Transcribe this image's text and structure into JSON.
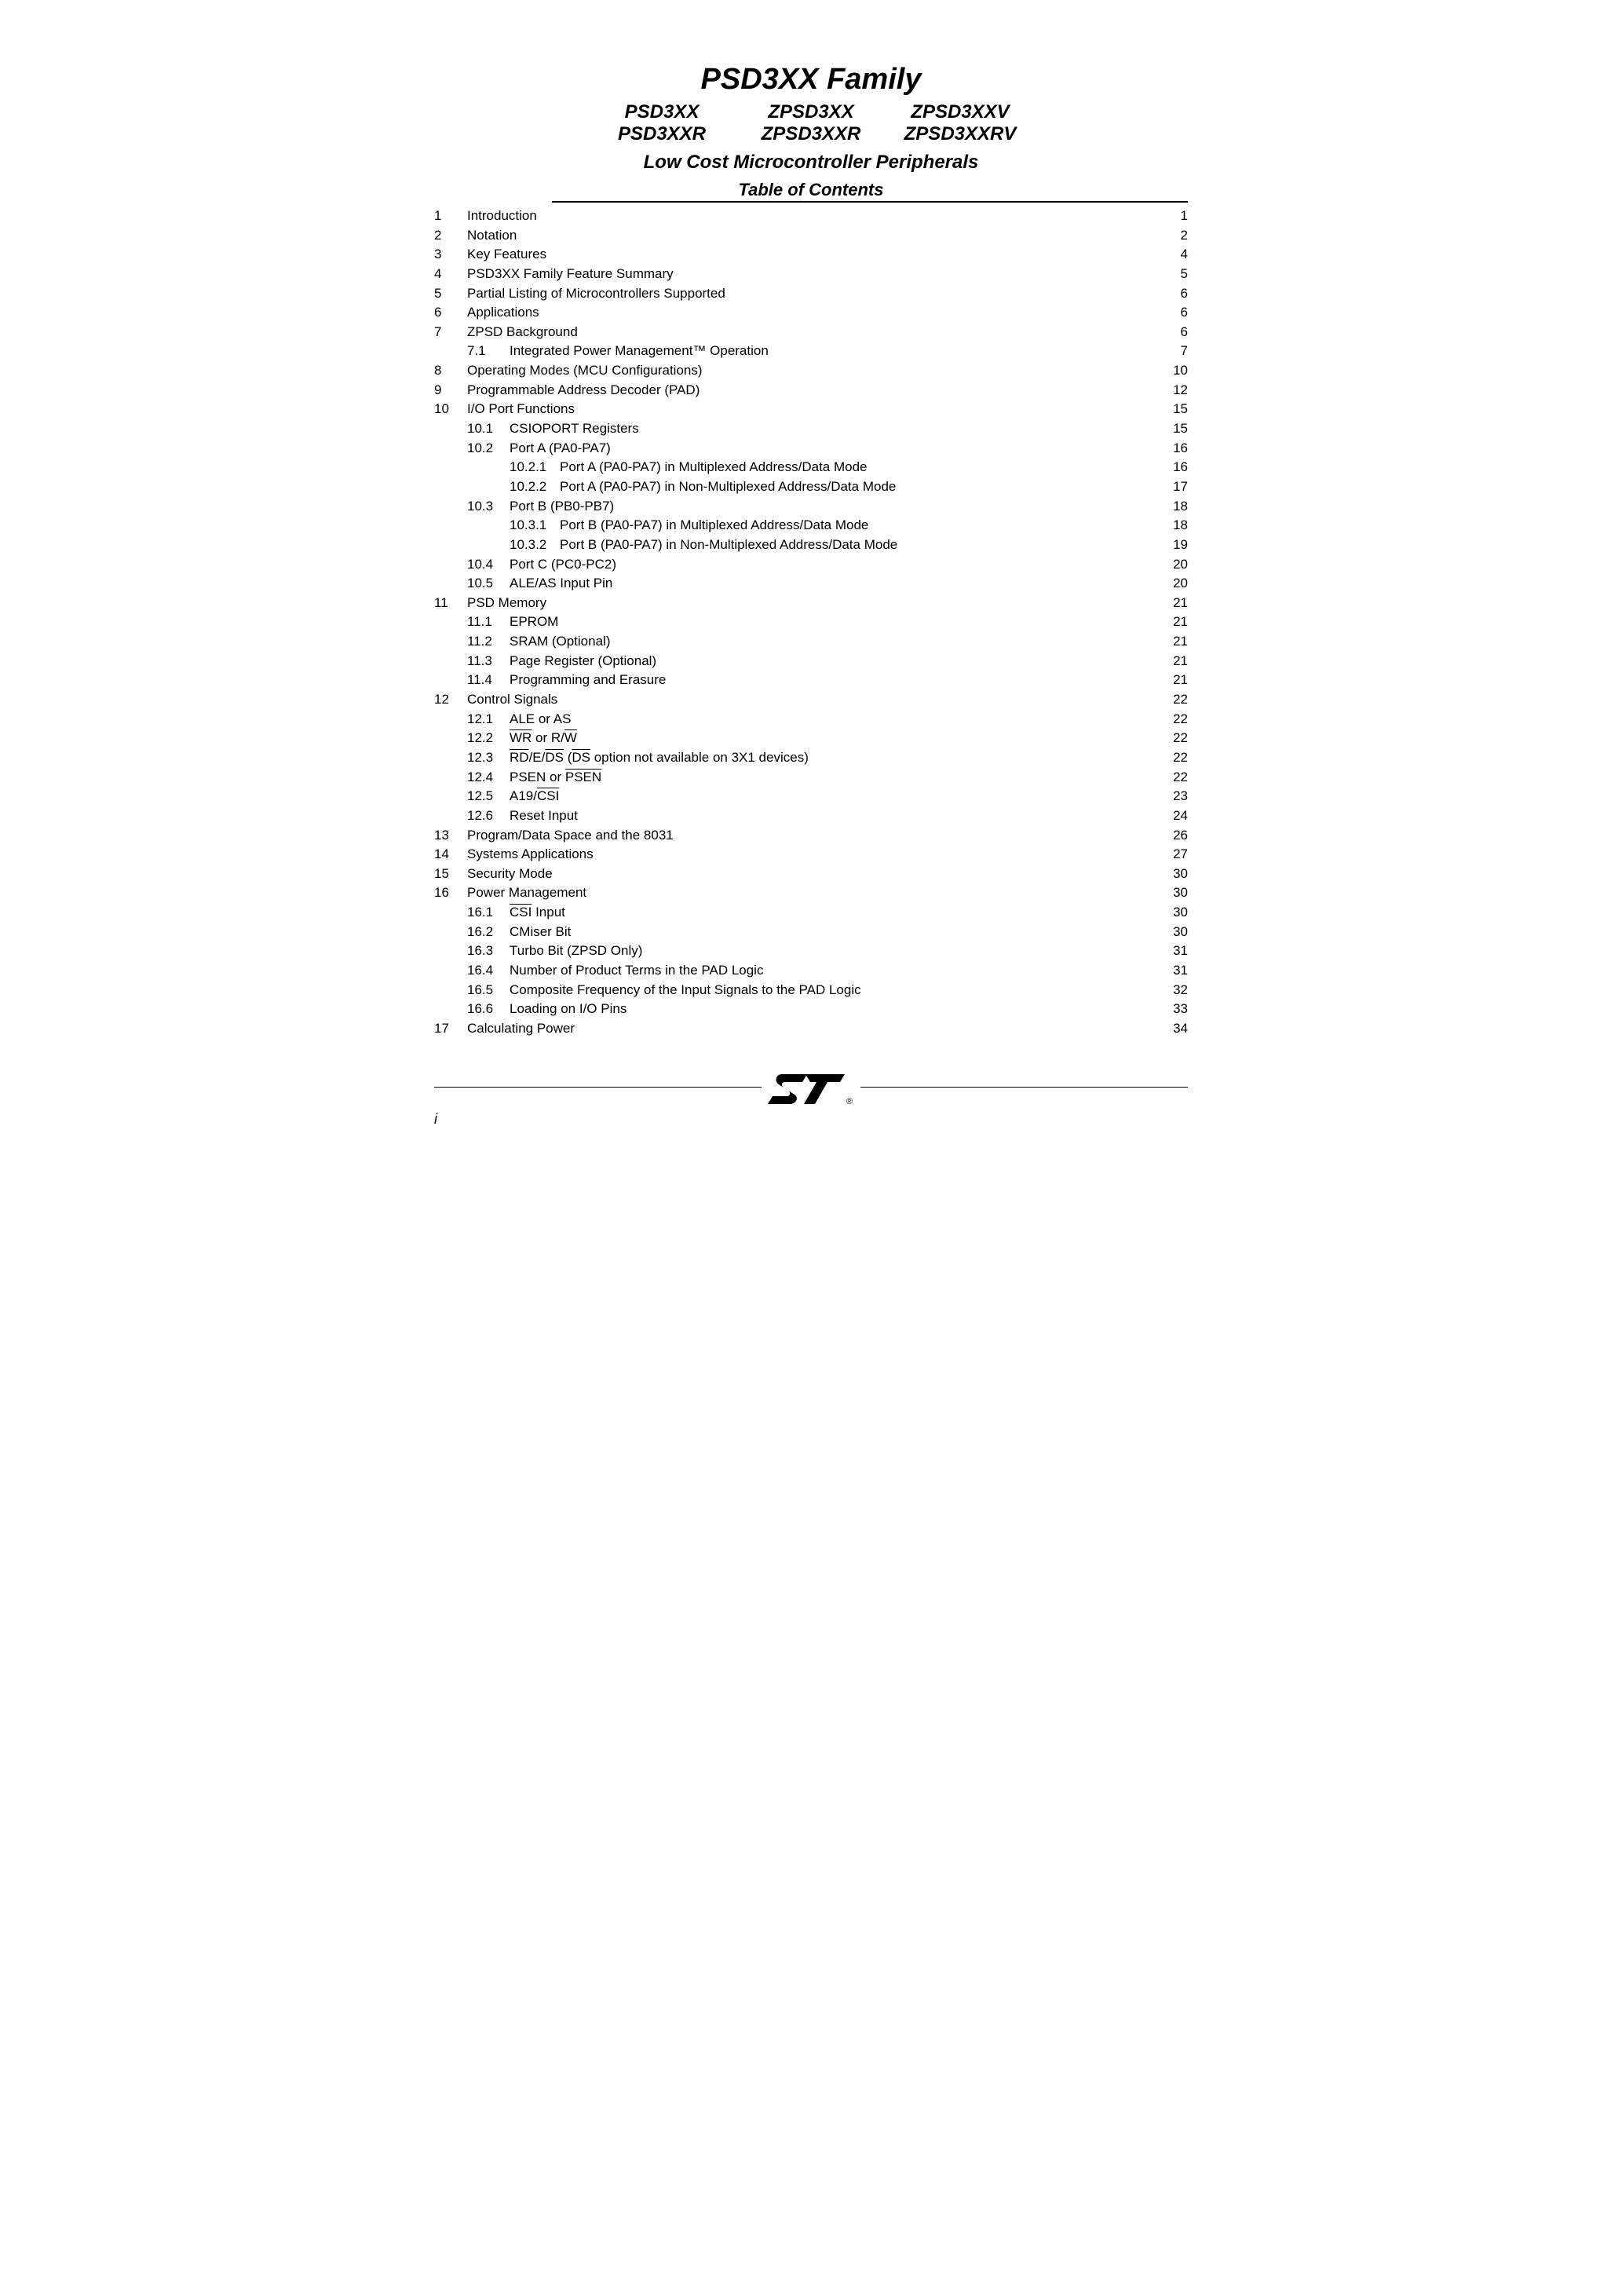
{
  "colors": {
    "text": "#000000",
    "background": "#ffffff",
    "rule": "#000000"
  },
  "typography": {
    "title_fontsize_pt": 28,
    "variant_fontsize_pt": 18,
    "subtitle_fontsize_pt": 18,
    "toc_title_fontsize_pt": 17,
    "body_fontsize_pt": 12.5
  },
  "header": {
    "title": "PSD3XX Family",
    "variants_row1": [
      "PSD3XX",
      "ZPSD3XX",
      "ZPSD3XXV"
    ],
    "variants_row2": [
      "PSD3XXR",
      "ZPSD3XXR",
      "ZPSD3XXRV"
    ],
    "subtitle": "Low Cost Microcontroller Peripherals",
    "toc_title": "Table of Contents"
  },
  "toc": [
    {
      "n": "1",
      "t": "Introduction",
      "p": "1"
    },
    {
      "n": "2",
      "t": "Notation",
      "p": "2"
    },
    {
      "n": "3",
      "t": "Key Features",
      "p": "4"
    },
    {
      "n": "4",
      "t": "PSD3XX Family Feature Summary",
      "p": "5"
    },
    {
      "n": "5",
      "t": "Partial Listing of Microcontrollers Supported",
      "p": "6"
    },
    {
      "n": "6",
      "t": "Applications",
      "p": "6"
    },
    {
      "n": "7",
      "t": "ZPSD Background",
      "p": "6",
      "children": [
        {
          "n": "7.1",
          "t": "Integrated Power Management™ Operation",
          "p": "7"
        }
      ]
    },
    {
      "n": "8",
      "t": "Operating Modes (MCU Configurations)",
      "p": "10"
    },
    {
      "n": "9",
      "t": "Programmable Address Decoder (PAD)",
      "p": "12"
    },
    {
      "n": "10",
      "t": "I/O Port Functions",
      "p": "15",
      "children": [
        {
          "n": "10.1",
          "t": "CSIOPORT Registers",
          "p": "15"
        },
        {
          "n": "10.2",
          "t": "Port A (PA0-PA7)",
          "p": "16",
          "children": [
            {
              "n": "10.2.1",
              "t": "Port A (PA0-PA7) in Multiplexed Address/Data Mode",
              "p": "16"
            },
            {
              "n": "10.2.2",
              "t": "Port A (PA0-PA7) in Non-Multiplexed Address/Data Mode",
              "p": "17"
            }
          ]
        },
        {
          "n": "10.3",
          "t": "Port B (PB0-PB7)",
          "p": "18",
          "children": [
            {
              "n": "10.3.1",
              "t": "Port B (PA0-PA7) in Multiplexed Address/Data Mode",
              "p": "18"
            },
            {
              "n": "10.3.2",
              "t": "Port B (PA0-PA7) in Non-Multiplexed Address/Data Mode",
              "p": "19"
            }
          ]
        },
        {
          "n": "10.4",
          "t": "Port C (PC0-PC2)",
          "p": "20"
        },
        {
          "n": "10.5",
          "t": "ALE/AS Input Pin",
          "p": "20"
        }
      ]
    },
    {
      "n": "11",
      "t": "PSD Memory",
      "p": "21",
      "children": [
        {
          "n": "11.1",
          "t": "EPROM",
          "p": "21"
        },
        {
          "n": "11.2",
          "t": "SRAM (Optional)",
          "p": "21"
        },
        {
          "n": "11.3",
          "t": "Page Register (Optional)",
          "p": "21"
        },
        {
          "n": "11.4",
          "t": "Programming and Erasure",
          "p": "21"
        }
      ]
    },
    {
      "n": "12",
      "t": "Control Signals",
      "p": "22",
      "children": [
        {
          "n": "12.1",
          "t": "ALE or AS",
          "p": "22"
        },
        {
          "n": "12.2",
          "html": "<span class=\"overline\">WR</span> or R/<span class=\"overline\">W</span>",
          "p": "22"
        },
        {
          "n": "12.3",
          "html": "<span class=\"overline\">RD</span>/E/<span class=\"overline\">DS</span> (<span class=\"overline\">DS</span> option not available on 3X1 devices)",
          "p": "22"
        },
        {
          "n": "12.4",
          "html": "PSEN or <span class=\"overline\">PSEN</span>",
          "p": "22"
        },
        {
          "n": "12.5",
          "html": "A19/<span class=\"overline\">CSI</span>",
          "p": "23"
        },
        {
          "n": "12.6",
          "t": "Reset Input",
          "p": "24"
        }
      ]
    },
    {
      "n": "13",
      "t": "Program/Data Space and the 8031",
      "p": "26"
    },
    {
      "n": "14",
      "t": "Systems Applications",
      "p": "27"
    },
    {
      "n": "15",
      "t": "Security Mode",
      "p": "30"
    },
    {
      "n": "16",
      "t": "Power Management",
      "p": "30",
      "children": [
        {
          "n": "16.1",
          "html": "<span class=\"overline\">CSI</span> Input",
          "p": "30"
        },
        {
          "n": "16.2",
          "t": "CMiser Bit",
          "p": "30"
        },
        {
          "n": "16.3",
          "t": "Turbo Bit (ZPSD Only)",
          "p": "31"
        },
        {
          "n": "16.4",
          "t": "Number of Product Terms in the PAD Logic",
          "p": "31"
        },
        {
          "n": "16.5",
          "t": "Composite Frequency of the Input Signals to the PAD Logic",
          "p": "32"
        },
        {
          "n": "16.6",
          "t": "Loading on I/O Pins",
          "p": "33"
        }
      ]
    },
    {
      "n": "17",
      "t": "Calculating Power",
      "p": "34"
    }
  ],
  "footer": {
    "page_number": "i"
  }
}
